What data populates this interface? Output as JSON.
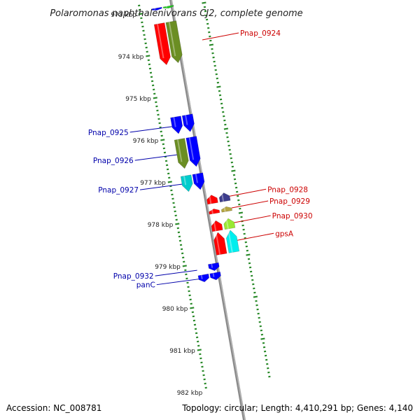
{
  "title": "Polaromonas naphthalenivorans CJ2, complete genome",
  "footer": {
    "accession": "Accession: NC_008781",
    "summary": "Topology: circular; Length: 4,410,291 bp; Genes: 4,140"
  },
  "colors": {
    "backbone": "#8a8a8a",
    "ticks": "#2a8a2a",
    "left_label": "#0000aa",
    "right_label": "#cc0000"
  },
  "ruler": [
    {
      "label": "973 kbp",
      "kbp": 973
    },
    {
      "label": "974 kbp",
      "kbp": 974
    },
    {
      "label": "975 kbp",
      "kbp": 975
    },
    {
      "label": "976 kbp",
      "kbp": 976
    },
    {
      "label": "977 kbp",
      "kbp": 977
    },
    {
      "label": "978 kbp",
      "kbp": 978
    },
    {
      "label": "979 kbp",
      "kbp": 979
    },
    {
      "label": "980 kbp",
      "kbp": 980
    },
    {
      "label": "981 kbp",
      "kbp": 981
    },
    {
      "label": "982 kbp",
      "kbp": 982
    }
  ],
  "features": [
    {
      "strand": "+",
      "lane": 1,
      "start": 972.93,
      "end": 972.98,
      "color": "#0000ff",
      "label": "",
      "label_side": "none"
    },
    {
      "strand": "+",
      "lane": 2,
      "start": 972.93,
      "end": 972.98,
      "color": "#22cc22",
      "label": "",
      "label_side": "none"
    },
    {
      "strand": "+",
      "lane": 1,
      "start": 973.3,
      "end": 974.28,
      "color": "#ff0000",
      "label": "Pnap_0924",
      "label_side": "right"
    },
    {
      "strand": "+",
      "lane": 2,
      "start": 973.3,
      "end": 974.28,
      "color": "#6b8e23",
      "label": "Pnap_0924",
      "label_side": "right"
    },
    {
      "strand": "+",
      "lane": 1,
      "start": 975.52,
      "end": 975.92,
      "color": "#0000ff",
      "label": "Pnap_0925",
      "label_side": "left"
    },
    {
      "strand": "+",
      "lane": 2,
      "start": 975.52,
      "end": 975.92,
      "color": "#0000ff",
      "label": "Pnap_0925",
      "label_side": "left"
    },
    {
      "strand": "+",
      "lane": 1,
      "start": 976.05,
      "end": 976.75,
      "color": "#6b8e23",
      "label": "Pnap_0926",
      "label_side": "left"
    },
    {
      "strand": "+",
      "lane": 2,
      "start": 976.05,
      "end": 976.75,
      "color": "#0000ff",
      "label": "Pnap_0926",
      "label_side": "left"
    },
    {
      "strand": "+",
      "lane": 1,
      "start": 976.92,
      "end": 977.3,
      "color": "#00cccc",
      "label": "Pnap_0927",
      "label_side": "left"
    },
    {
      "strand": "+",
      "lane": 2,
      "start": 976.92,
      "end": 977.3,
      "color": "#0000ff",
      "label": "Pnap_0927",
      "label_side": "left"
    },
    {
      "strand": "-",
      "lane": 1,
      "start": 977.47,
      "end": 977.67,
      "color": "#ff0000",
      "label": "Pnap_0928",
      "label_side": "right"
    },
    {
      "strand": "-",
      "lane": 2,
      "start": 977.47,
      "end": 977.67,
      "color": "#3c3c8c",
      "label": "Pnap_0928",
      "label_side": "right"
    },
    {
      "strand": "-",
      "lane": 1,
      "start": 977.8,
      "end": 977.91,
      "color": "#ff0000",
      "label": "Pnap_0929",
      "label_side": "right"
    },
    {
      "strand": "-",
      "lane": 2,
      "start": 977.8,
      "end": 977.91,
      "color": "#b5a642",
      "label": "Pnap_0929",
      "label_side": "right"
    },
    {
      "strand": "-",
      "lane": 1,
      "start": 978.08,
      "end": 978.32,
      "color": "#ff0000",
      "label": "Pnap_0930",
      "label_side": "right"
    },
    {
      "strand": "-",
      "lane": 2,
      "start": 978.08,
      "end": 978.32,
      "color": "#99e833",
      "label": "Pnap_0930",
      "label_side": "right"
    },
    {
      "strand": "-",
      "lane": 1,
      "start": 978.36,
      "end": 978.88,
      "color": "#ff0000",
      "label": "gpsA",
      "label_side": "right"
    },
    {
      "strand": "-",
      "lane": 2,
      "start": 978.36,
      "end": 978.88,
      "color": "#00eeee",
      "label": "gpsA",
      "label_side": "right"
    },
    {
      "strand": "+",
      "lane": 2,
      "start": 979.06,
      "end": 979.23,
      "color": "#0000ff",
      "label": "Pnap_0932",
      "label_side": "left"
    },
    {
      "strand": "+",
      "lane": 1,
      "start": 979.28,
      "end": 979.45,
      "color": "#0000ff",
      "label": "panC",
      "label_side": "left"
    },
    {
      "strand": "+",
      "lane": 2,
      "start": 979.28,
      "end": 979.45,
      "color": "#0000ff",
      "label": "panC",
      "label_side": "left"
    }
  ],
  "gene_labels": [
    {
      "text": "Pnap_0924",
      "side": "right",
      "kbp": 973.85,
      "strand": "+"
    },
    {
      "text": "Pnap_0925",
      "side": "left",
      "kbp": 975.73,
      "strand": "+"
    },
    {
      "text": "Pnap_0926",
      "side": "left",
      "kbp": 976.4,
      "strand": "+"
    },
    {
      "text": "Pnap_0927",
      "side": "left",
      "kbp": 977.1,
      "strand": "+"
    },
    {
      "text": "Pnap_0928",
      "side": "right",
      "kbp": 977.57,
      "strand": "-"
    },
    {
      "text": "Pnap_0929",
      "side": "right",
      "kbp": 977.85,
      "strand": "-"
    },
    {
      "text": "Pnap_0930",
      "side": "right",
      "kbp": 978.2,
      "strand": "-"
    },
    {
      "text": "gpsA",
      "side": "right",
      "kbp": 978.62,
      "strand": "-"
    },
    {
      "text": "Pnap_0932",
      "side": "left",
      "kbp": 979.15,
      "strand": "+"
    },
    {
      "text": "panC",
      "side": "left",
      "kbp": 979.36,
      "strand": "+"
    }
  ]
}
